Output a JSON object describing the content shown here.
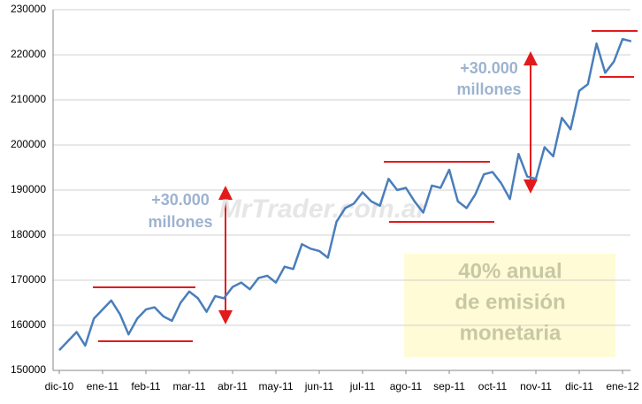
{
  "chart_data": {
    "type": "line",
    "categories": [
      "dic-10",
      null,
      null,
      null,
      null,
      "ene-11",
      null,
      null,
      null,
      null,
      "feb-11",
      null,
      null,
      null,
      null,
      "mar-11",
      null,
      null,
      null,
      null,
      "abr-11",
      null,
      null,
      null,
      null,
      "may-11",
      null,
      null,
      null,
      null,
      "jun-11",
      null,
      null,
      null,
      null,
      "jul-11",
      null,
      null,
      null,
      null,
      "ago-11",
      null,
      null,
      null,
      null,
      "sep-11",
      null,
      null,
      null,
      null,
      "oct-11",
      null,
      null,
      null,
      null,
      "nov-11",
      null,
      null,
      null,
      null,
      "dic-11",
      null,
      null,
      null,
      null,
      "ene-12",
      null
    ],
    "series": [
      {
        "color": "#4a7ebb",
        "values": [
          154500,
          156500,
          158500,
          155500,
          161500,
          163500,
          165500,
          162500,
          158000,
          161500,
          163500,
          164000,
          162000,
          161000,
          165000,
          167500,
          166000,
          163000,
          166500,
          166000,
          168500,
          169500,
          168000,
          170500,
          171000,
          169500,
          173000,
          172500,
          178000,
          177000,
          176500,
          175000,
          183000,
          186000,
          187000,
          189500,
          187500,
          186500,
          192500,
          190000,
          190500,
          187500,
          185000,
          191000,
          190500,
          194500,
          187500,
          186000,
          189000,
          193500,
          194000,
          191500,
          188000,
          198000,
          193000,
          192500,
          199500,
          197500,
          206000,
          203500,
          212000,
          213500,
          222500,
          216000,
          218500,
          223500,
          223000
        ]
      }
    ],
    "ylim": [
      150000,
      230000
    ],
    "yticks": [
      150000,
      160000,
      170000,
      180000,
      190000,
      200000,
      210000,
      220000,
      230000
    ],
    "grid": true,
    "annotations": [
      {
        "lines": [
          "+30.000",
          "millones"
        ]
      },
      {
        "lines": [
          "+30.000",
          "millones"
        ]
      },
      {
        "lines": [
          "40% anual",
          "de emisión",
          "monetaria"
        ]
      },
      {
        "lines": [
          "MrTrader.com.ar"
        ]
      }
    ]
  }
}
